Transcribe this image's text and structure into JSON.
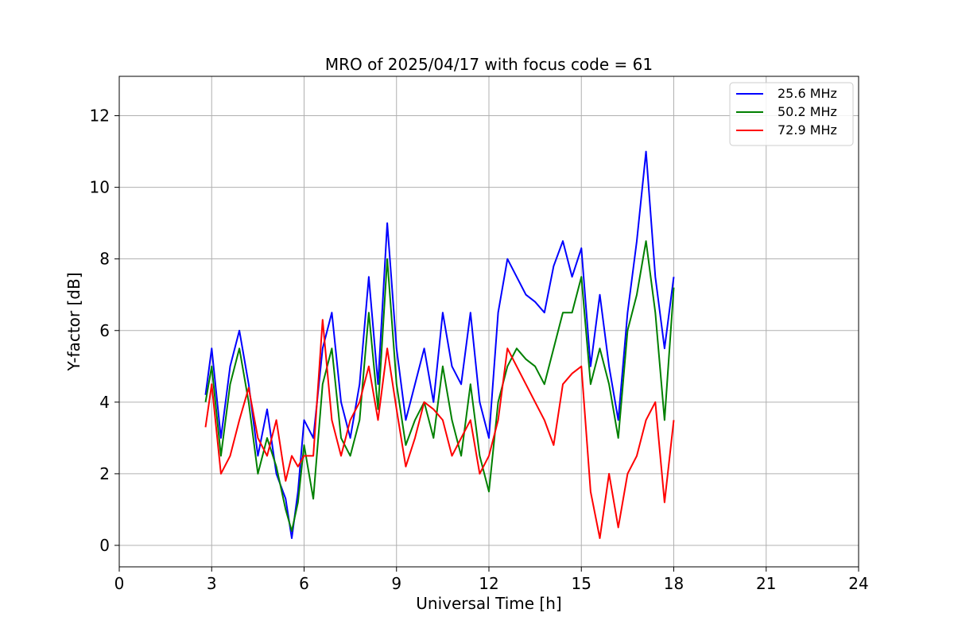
{
  "chart_data": {
    "type": "line",
    "title": "MRO of 2025/04/17 with focus code = 61",
    "xlabel": "Universal Time [h]",
    "ylabel": "Y-factor [dB]",
    "xlim": [
      0,
      24
    ],
    "ylim": [
      -0.6,
      13.1
    ],
    "xticks": [
      0,
      3,
      6,
      9,
      12,
      15,
      18,
      21,
      24
    ],
    "yticks": [
      0,
      2,
      4,
      6,
      8,
      10,
      12
    ],
    "grid": true,
    "legend_position": "top-right",
    "x": [
      2.8,
      3.0,
      3.3,
      3.6,
      3.9,
      4.2,
      4.5,
      4.8,
      5.1,
      5.4,
      5.6,
      5.8,
      6.0,
      6.3,
      6.6,
      6.9,
      7.2,
      7.5,
      7.8,
      8.1,
      8.4,
      8.7,
      9.0,
      9.3,
      9.6,
      9.9,
      10.2,
      10.5,
      10.8,
      11.1,
      11.4,
      11.7,
      12.0,
      12.3,
      12.6,
      12.9,
      13.2,
      13.5,
      13.8,
      14.1,
      14.4,
      14.7,
      15.0,
      15.3,
      15.6,
      15.9,
      16.2,
      16.5,
      16.8,
      17.1,
      17.4,
      17.7,
      18.0
    ],
    "series": [
      {
        "name": "25.6 MHz",
        "color": "#0000ff",
        "values": [
          4.2,
          5.5,
          3.0,
          5.0,
          6.0,
          4.5,
          2.5,
          3.8,
          2.0,
          1.3,
          0.2,
          1.5,
          3.5,
          3.0,
          5.5,
          6.5,
          4.0,
          3.0,
          4.5,
          7.5,
          4.5,
          9.0,
          5.5,
          3.5,
          4.5,
          5.5,
          4.0,
          6.5,
          5.0,
          4.5,
          6.5,
          4.0,
          3.0,
          6.5,
          8.0,
          7.5,
          7.0,
          6.8,
          6.5,
          7.8,
          8.5,
          7.5,
          8.3,
          5.0,
          7.0,
          5.0,
          3.5,
          6.5,
          8.5,
          11.0,
          7.5,
          5.5,
          7.5
        ]
      },
      {
        "name": "50.2 MHz",
        "color": "#008000",
        "values": [
          4.0,
          5.0,
          2.5,
          4.5,
          5.5,
          4.0,
          2.0,
          3.0,
          2.2,
          1.0,
          0.4,
          1.2,
          2.8,
          1.3,
          4.5,
          5.5,
          3.0,
          2.5,
          3.5,
          6.5,
          3.8,
          8.0,
          4.5,
          2.8,
          3.5,
          4.0,
          3.0,
          5.0,
          3.5,
          2.5,
          4.5,
          2.5,
          1.5,
          4.0,
          5.0,
          5.5,
          5.2,
          5.0,
          4.5,
          5.5,
          6.5,
          6.5,
          7.5,
          4.5,
          5.5,
          4.5,
          3.0,
          6.0,
          7.0,
          8.5,
          6.5,
          3.5,
          7.2
        ]
      },
      {
        "name": "72.9 MHz",
        "color": "#ff0000",
        "values": [
          3.3,
          4.5,
          2.0,
          2.5,
          3.5,
          4.4,
          3.0,
          2.5,
          3.5,
          1.8,
          2.5,
          2.2,
          2.5,
          2.5,
          6.3,
          3.5,
          2.5,
          3.5,
          4.0,
          5.0,
          3.5,
          5.5,
          3.8,
          2.2,
          3.0,
          4.0,
          3.8,
          3.5,
          2.5,
          3.0,
          3.5,
          2.0,
          2.5,
          3.5,
          5.5,
          5.0,
          4.5,
          4.0,
          3.5,
          2.8,
          4.5,
          4.8,
          5.0,
          1.5,
          0.2,
          2.0,
          0.5,
          2.0,
          2.5,
          3.5,
          4.0,
          1.2,
          3.5
        ]
      }
    ]
  }
}
